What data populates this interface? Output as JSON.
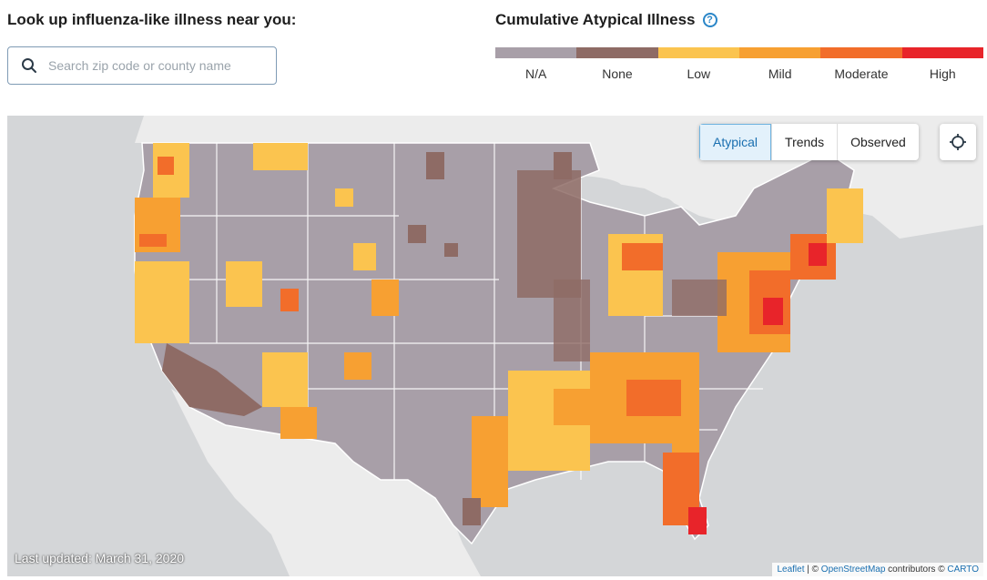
{
  "search": {
    "title": "Look up influenza-like illness near you:",
    "placeholder": "Search zip code or county name",
    "icon": "search-icon"
  },
  "legend": {
    "title": "Cumulative Atypical Illness",
    "help_icon": "?",
    "items": [
      {
        "label": "N/A",
        "color": "#a89fa8"
      },
      {
        "label": "None",
        "color": "#8e6b65"
      },
      {
        "label": "Low",
        "color": "#fbc44f"
      },
      {
        "label": "Mild",
        "color": "#f7a032"
      },
      {
        "label": "Moderate",
        "color": "#f26d2a"
      },
      {
        "label": "High",
        "color": "#e8242a"
      }
    ]
  },
  "map": {
    "tabs": [
      {
        "label": "Atypical",
        "active": true
      },
      {
        "label": "Trends",
        "active": false
      },
      {
        "label": "Observed",
        "active": false
      }
    ],
    "locate_icon": "locate-icon",
    "last_updated": "Last updated: March 31, 2020",
    "attribution": {
      "leaflet": "Leaflet",
      "separator": " | © ",
      "osm": "OpenStreetMap",
      "contributors": " contributors © ",
      "carto": "CARTO"
    }
  }
}
